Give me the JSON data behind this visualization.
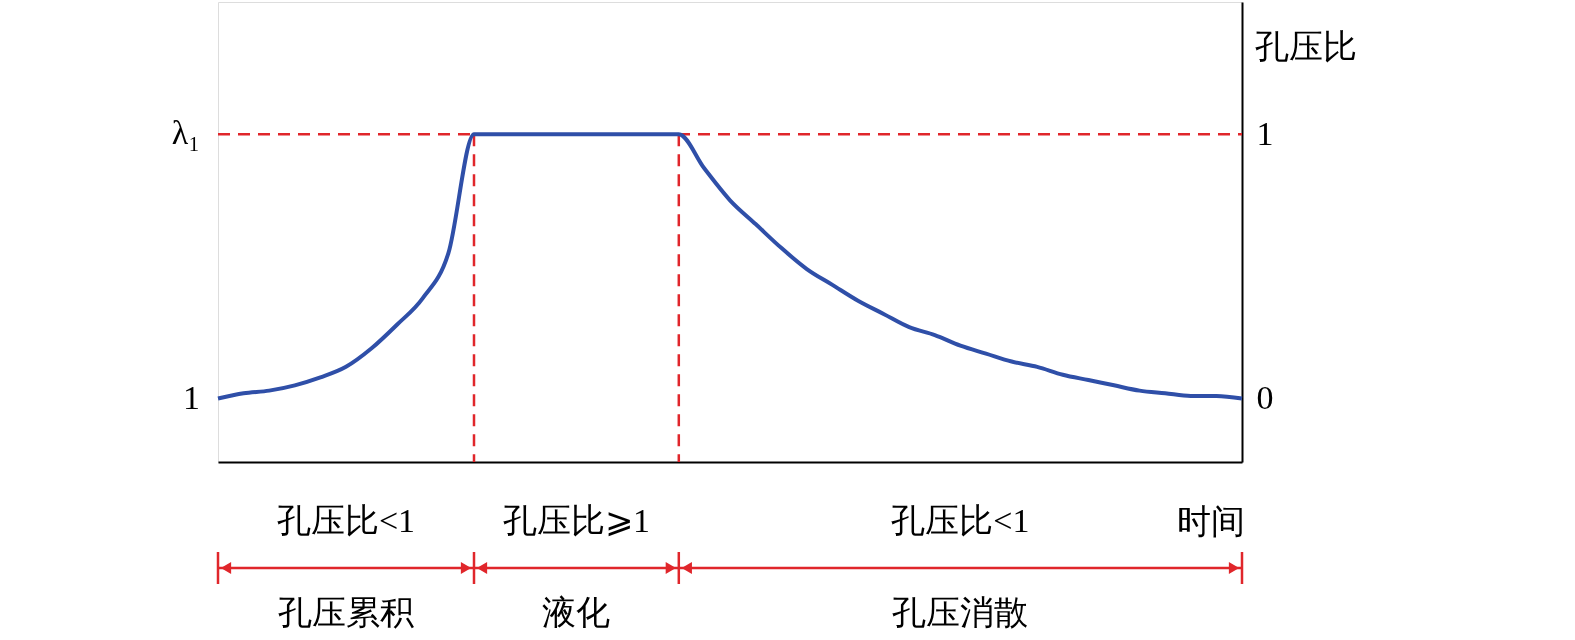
{
  "chart_data": {
    "type": "line",
    "xlabel": "时间",
    "ylabel": "孔压比",
    "annotations": [
      "孔压比<1",
      "孔压比⩾1",
      "孔压比<1",
      "孔压累积",
      "液化",
      "孔压消散",
      "λ₁",
      "1"
    ],
    "categories": [
      null,
      null,
      null,
      null,
      null,
      null,
      null,
      null,
      null,
      null,
      null,
      null,
      null,
      null,
      null,
      null,
      null,
      null,
      null,
      null,
      null,
      null,
      null,
      null,
      null,
      null,
      null,
      null,
      null,
      null,
      null,
      null,
      null,
      null,
      null,
      null,
      null,
      null,
      null,
      null,
      null
    ],
    "series": [
      {
        "color": "#2f4fa8",
        "values": [
          0,
          0.02,
          0.03,
          0.05,
          0.08,
          0.12,
          0.19,
          0.28,
          0.38,
          0.55,
          1,
          1,
          1,
          1,
          1,
          1,
          1,
          1,
          1,
          0.87,
          0.75,
          0.66,
          0.57,
          0.49,
          0.43,
          0.37,
          0.32,
          0.27,
          0.24,
          0.2,
          0.17,
          0.14,
          0.12,
          0.09,
          0.07,
          0.05,
          0.03,
          0.02,
          0.01,
          0.01,
          0
        ]
      }
    ],
    "ylim": [
      -0.24,
      1.5
    ],
    "yticks": [
      0,
      1
    ],
    "ref_lines": [
      {
        "axis": "y",
        "value": 1,
        "color": "#e0262b",
        "line_style": "dashed"
      }
    ],
    "tick_labels": "y",
    "grid": false,
    "marker": "none"
  }
}
